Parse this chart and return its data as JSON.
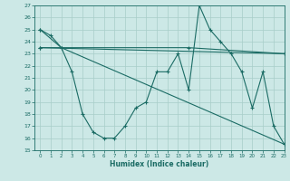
{
  "xlabel": "Humidex (Indice chaleur)",
  "bg_color": "#cce8e6",
  "line_color": "#1a6b64",
  "grid_color": "#a8cdc9",
  "ylim": [
    15,
    27
  ],
  "xlim": [
    -0.5,
    23
  ],
  "yticks": [
    15,
    16,
    17,
    18,
    19,
    20,
    21,
    22,
    23,
    24,
    25,
    26,
    27
  ],
  "xticks": [
    0,
    1,
    2,
    3,
    4,
    5,
    6,
    7,
    8,
    9,
    10,
    11,
    12,
    13,
    14,
    15,
    16,
    17,
    18,
    19,
    20,
    21,
    22,
    23
  ],
  "series": [
    {
      "x": [
        0,
        1,
        2,
        3,
        4,
        5,
        6,
        7,
        8,
        9,
        10,
        11,
        12,
        13,
        14,
        15,
        16,
        17,
        18,
        19,
        20,
        21,
        22,
        23
      ],
      "y": [
        25,
        24.5,
        23.5,
        21.5,
        18,
        16.5,
        16,
        16,
        17,
        18.5,
        19,
        21.5,
        21.5,
        23,
        20,
        27,
        25,
        24,
        23,
        21.5,
        18.5,
        21.5,
        17,
        15.5
      ]
    },
    {
      "x": [
        0,
        2,
        23
      ],
      "y": [
        25,
        23.5,
        15.5
      ]
    },
    {
      "x": [
        0,
        14,
        23
      ],
      "y": [
        23.5,
        23.5,
        23
      ]
    },
    {
      "x": [
        0,
        23
      ],
      "y": [
        23.5,
        23
      ]
    }
  ]
}
